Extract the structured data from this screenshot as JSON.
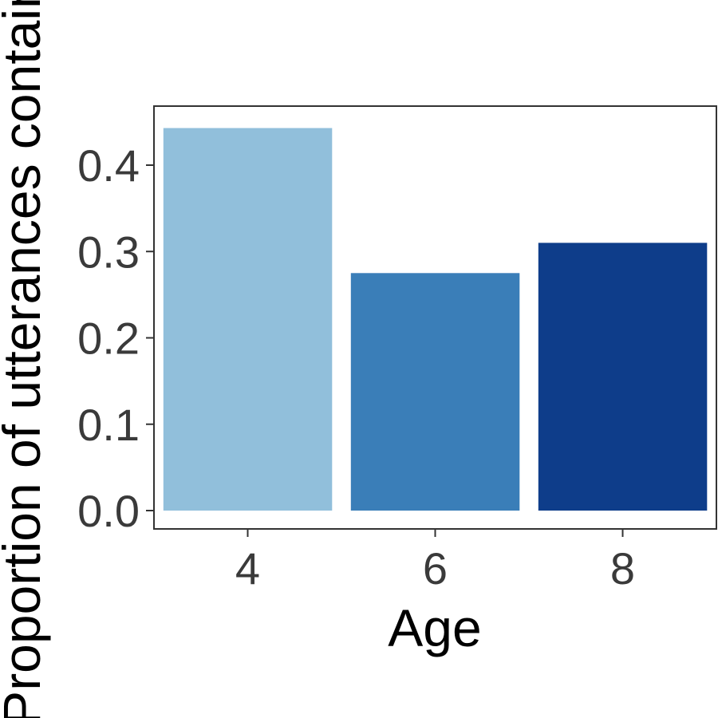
{
  "chart_data": {
    "type": "bar",
    "title": "",
    "xlabel": "Age",
    "ylabel": "Proportion of utterances containing",
    "categories": [
      "4",
      "6",
      "8"
    ],
    "values": [
      0.443,
      0.275,
      0.31
    ],
    "colors": [
      "#91bfdb",
      "#3a7eb8",
      "#0e3d8a"
    ],
    "ylim": [
      -0.02,
      0.47
    ],
    "yticks": [
      0.0,
      0.1,
      0.2,
      0.3,
      0.4
    ],
    "ytick_labels": [
      "0.0",
      "0.1",
      "0.2",
      "0.3",
      "0.4"
    ],
    "grid": false,
    "legend": "none"
  }
}
